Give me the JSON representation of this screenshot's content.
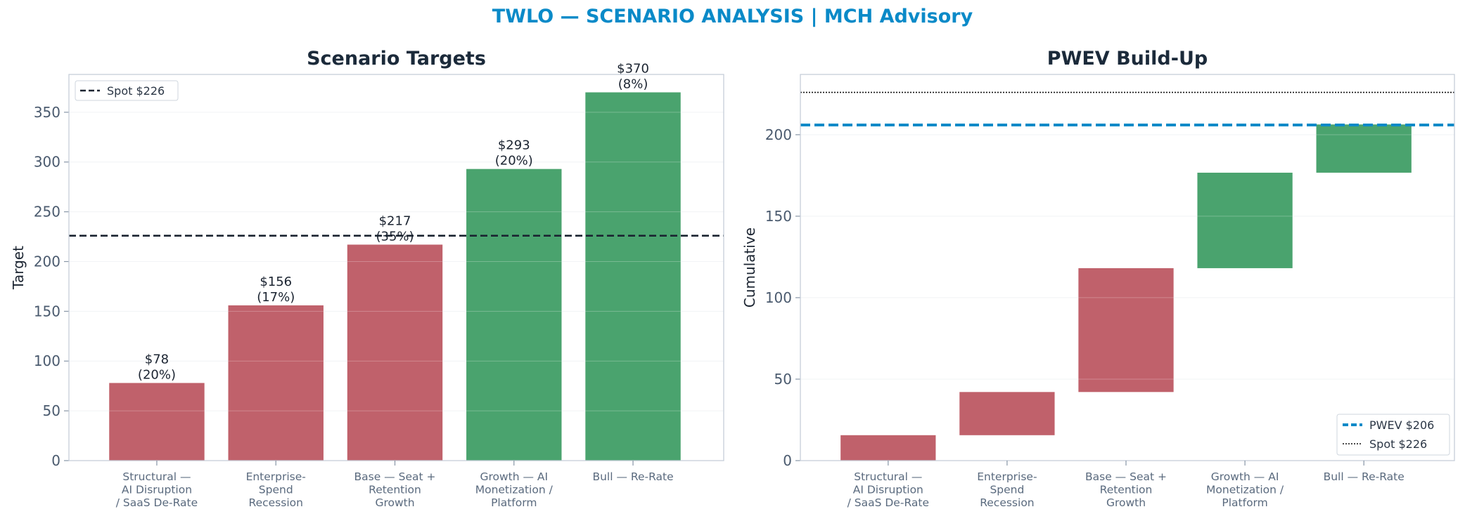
{
  "suptitle": "TWLO — SCENARIO ANALYSIS | MCH Advisory",
  "colors": {
    "bear": "#c0616b",
    "bull": "#4aa36e",
    "spot": "#1b2431",
    "pwev": "#0a8ac8",
    "title": "#1b2a3a",
    "suptitle": "#0a8ac8"
  },
  "chart_data": [
    {
      "type": "bar",
      "title": "Scenario Targets",
      "xlabel": "",
      "ylabel": "Target",
      "categories": [
        [
          "Structural —",
          "AI Disruption",
          "/ SaaS De-Rate"
        ],
        [
          "Enterprise-",
          "Spend",
          "Recession"
        ],
        [
          "Base — Seat +",
          "Retention",
          "Growth"
        ],
        [
          "Growth — AI",
          "Monetization /",
          "Platform"
        ],
        [
          "Bull — Re-Rate"
        ]
      ],
      "values": [
        78,
        156,
        217,
        293,
        370
      ],
      "probabilities": [
        "20%",
        "17%",
        "35%",
        "20%",
        "8%"
      ],
      "data_labels": [
        [
          "$78",
          "(20%)"
        ],
        [
          "$156",
          "(17%)"
        ],
        [
          "$217",
          "(35%)"
        ],
        [
          "$293",
          "(20%)"
        ],
        [
          "$370",
          "(8%)"
        ]
      ],
      "bar_colors": [
        "bear",
        "bear",
        "bear",
        "bull",
        "bull"
      ],
      "reference_line": {
        "value": 226,
        "style": "dashed",
        "label": "Spot $226"
      },
      "legend": {
        "placement": "top-left",
        "entries": [
          "Spot $226"
        ]
      },
      "ylim": [
        0,
        388
      ],
      "yticks": [
        0,
        50,
        100,
        150,
        200,
        250,
        300,
        350
      ],
      "grid": true
    },
    {
      "type": "waterfall",
      "title": "PWEV Build-Up",
      "xlabel": "",
      "ylabel": "Cumulative",
      "categories": [
        [
          "Structural —",
          "AI Disruption",
          "/ SaaS De-Rate"
        ],
        [
          "Enterprise-",
          "Spend",
          "Recession"
        ],
        [
          "Base — Seat +",
          "Retention",
          "Growth"
        ],
        [
          "Growth — AI",
          "Monetization /",
          "Platform"
        ],
        [
          "Bull — Re-Rate"
        ]
      ],
      "contributions": [
        15.6,
        26.5,
        76.0,
        58.6,
        29.6
      ],
      "cumulative_start": [
        0,
        15.6,
        42.1,
        118.1,
        176.7
      ],
      "cumulative_end": [
        15.6,
        42.1,
        118.1,
        176.7,
        206.3
      ],
      "bar_colors": [
        "bear",
        "bear",
        "bear",
        "bull",
        "bull"
      ],
      "reference_lines": [
        {
          "value": 206,
          "style": "dashed",
          "label": "PWEV $206"
        },
        {
          "value": 226,
          "style": "dotted",
          "label": "Spot $226"
        }
      ],
      "legend": {
        "placement": "bottom-right",
        "entries": [
          "PWEV $206",
          "Spot $226"
        ]
      },
      "ylim": [
        0,
        237
      ],
      "yticks": [
        0,
        50,
        100,
        150,
        200
      ],
      "grid": true
    }
  ]
}
